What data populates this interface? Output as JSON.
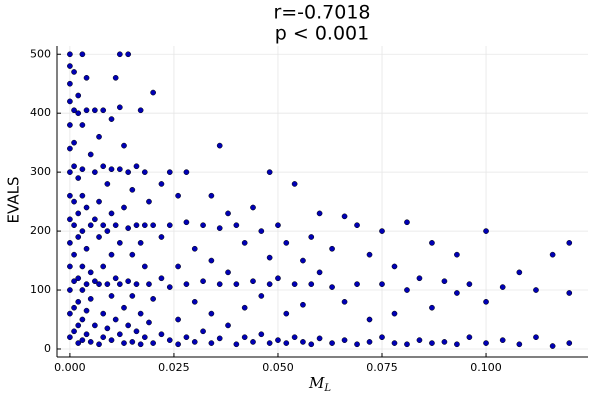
{
  "chart_data": {
    "type": "scatter",
    "title": "r=-0.7018",
    "subtitle": "p < 0.001",
    "xlabel": "M",
    "xlabel_subscript": "L",
    "ylabel": "EVALS",
    "color": "#0000b4",
    "grid": true,
    "xlim": [
      -0.0031,
      0.1245
    ],
    "ylim": [
      -13.6,
      514
    ],
    "xticks": [
      {
        "value": 0,
        "label": "0.000"
      },
      {
        "value": 0.025,
        "label": "0.025"
      },
      {
        "value": 0.05,
        "label": "0.050"
      },
      {
        "value": 0.075,
        "label": "0.075"
      },
      {
        "value": 0.1,
        "label": "0.100"
      }
    ],
    "yticks": [
      0,
      100,
      200,
      300,
      400,
      500
    ],
    "x": [
      0,
      0,
      0,
      0,
      0,
      0,
      0,
      0,
      0,
      0,
      0,
      0,
      0,
      0,
      0.001,
      0.001,
      0.001,
      0.001,
      0.001,
      0.001,
      0.001,
      0.001,
      0.001,
      0.001,
      0.002,
      0.002,
      0.002,
      0.002,
      0.002,
      0.002,
      0.002,
      0.002,
      0.002,
      0.003,
      0.003,
      0.003,
      0.003,
      0.003,
      0.003,
      0.003,
      0.003,
      0.003,
      0.004,
      0.004,
      0.004,
      0.004,
      0.004,
      0.004,
      0.004,
      0.005,
      0.005,
      0.005,
      0.005,
      0.005,
      0.006,
      0.006,
      0.006,
      0.006,
      0.006,
      0.007,
      0.007,
      0.007,
      0.007,
      0.007,
      0.008,
      0.008,
      0.008,
      0.008,
      0.008,
      0.008,
      0.009,
      0.009,
      0.009,
      0.009,
      0.01,
      0.01,
      0.01,
      0.01,
      0.01,
      0.01,
      0.011,
      0.011,
      0.011,
      0.011,
      0.012,
      0.012,
      0.012,
      0.012,
      0.012,
      0.012,
      0.013,
      0.013,
      0.013,
      0.013,
      0.014,
      0.014,
      0.014,
      0.014,
      0.014,
      0.015,
      0.015,
      0.015,
      0.015,
      0.016,
      0.016,
      0.016,
      0.016,
      0.017,
      0.017,
      0.017,
      0.017,
      0.018,
      0.018,
      0.018,
      0.018,
      0.019,
      0.019,
      0.019,
      0.02,
      0.02,
      0.02,
      0.02,
      0.022,
      0.022,
      0.022,
      0.022,
      0.024,
      0.024,
      0.024,
      0.024,
      0.026,
      0.026,
      0.026,
      0.026,
      0.028,
      0.028,
      0.028,
      0.028,
      0.03,
      0.03,
      0.03,
      0.032,
      0.032,
      0.032,
      0.034,
      0.034,
      0.034,
      0.034,
      0.036,
      0.036,
      0.036,
      0.036,
      0.038,
      0.038,
      0.038,
      0.04,
      0.04,
      0.04,
      0.042,
      0.042,
      0.042,
      0.044,
      0.044,
      0.044,
      0.046,
      0.046,
      0.046,
      0.048,
      0.048,
      0.048,
      0.048,
      0.05,
      0.05,
      0.05,
      0.052,
      0.052,
      0.052,
      0.054,
      0.054,
      0.054,
      0.056,
      0.056,
      0.056,
      0.058,
      0.058,
      0.058,
      0.06,
      0.06,
      0.06,
      0.063,
      0.063,
      0.063,
      0.066,
      0.066,
      0.066,
      0.069,
      0.069,
      0.069,
      0.072,
      0.072,
      0.072,
      0.075,
      0.075,
      0.075,
      0.078,
      0.078,
      0.078,
      0.081,
      0.081,
      0.081,
      0.084,
      0.084,
      0.087,
      0.087,
      0.087,
      0.09,
      0.09,
      0.093,
      0.093,
      0.093,
      0.096,
      0.096,
      0.1,
      0.1,
      0.1,
      0.104,
      0.104,
      0.108,
      0.108,
      0.112,
      0.112,
      0.116,
      0.116,
      0.12,
      0.12,
      0.12
    ],
    "values": [
      500,
      480,
      450,
      420,
      380,
      340,
      300,
      260,
      220,
      180,
      140,
      100,
      60,
      20,
      470,
      405,
      350,
      310,
      250,
      210,
      160,
      115,
      70,
      30,
      430,
      400,
      290,
      230,
      190,
      120,
      80,
      40,
      10,
      500,
      380,
      305,
      260,
      200,
      140,
      100,
      50,
      15,
      460,
      405,
      240,
      170,
      110,
      65,
      25,
      330,
      210,
      130,
      85,
      12,
      405,
      300,
      220,
      115,
      40,
      360,
      250,
      190,
      110,
      8,
      405,
      310,
      210,
      140,
      60,
      20,
      280,
      200,
      110,
      35,
      390,
      305,
      230,
      160,
      90,
      15,
      460,
      210,
      120,
      50,
      500,
      410,
      305,
      180,
      110,
      25,
      345,
      240,
      70,
      10,
      500,
      300,
      205,
      115,
      40,
      270,
      160,
      90,
      12,
      310,
      210,
      110,
      30,
      405,
      180,
      60,
      8,
      300,
      210,
      140,
      20,
      250,
      110,
      45,
      435,
      210,
      85,
      10,
      280,
      190,
      120,
      25,
      300,
      210,
      105,
      15,
      260,
      140,
      50,
      8,
      300,
      215,
      110,
      20,
      170,
      80,
      12,
      210,
      115,
      30,
      260,
      150,
      60,
      10,
      345,
      205,
      110,
      18,
      230,
      130,
      40,
      210,
      110,
      8,
      180,
      70,
      20,
      240,
      115,
      12,
      200,
      90,
      25,
      300,
      155,
      110,
      10,
      210,
      120,
      15,
      180,
      60,
      10,
      280,
      110,
      20,
      150,
      75,
      12,
      190,
      110,
      8,
      230,
      130,
      18,
      170,
      105,
      10,
      225,
      80,
      15,
      210,
      110,
      8,
      160,
      50,
      12,
      200,
      110,
      20,
      140,
      60,
      10,
      215,
      100,
      8,
      120,
      15,
      180,
      70,
      10,
      115,
      12,
      160,
      95,
      8,
      110,
      20,
      200,
      80,
      10,
      105,
      15,
      130,
      8,
      100,
      20,
      160,
      5,
      180,
      95,
      10
    ]
  }
}
